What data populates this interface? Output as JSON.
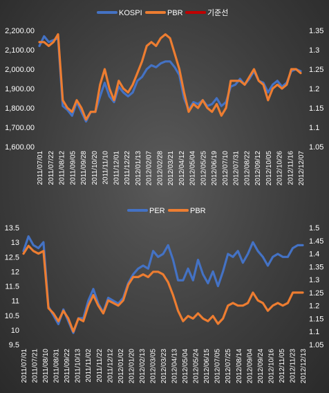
{
  "colors": {
    "kospi": "#4472c4",
    "per": "#4472c4",
    "pbr": "#ed7d31",
    "baseline": "#c00000",
    "text": "#ffffff"
  },
  "chart_data": [
    {
      "type": "line",
      "legend": [
        "KOSPI",
        "PBR",
        "기준선"
      ],
      "legend_position": "top",
      "grid": false,
      "left_axis": {
        "ticks": [
          "1,600.00",
          "1,700.00",
          "1,800.00",
          "1,900.00",
          "2,000.00",
          "2,100.00",
          "2,200.00"
        ],
        "min": 1600,
        "max": 2200
      },
      "right_axis": {
        "ticks": [
          "1.05",
          "1.1",
          "1.15",
          "1.2",
          "1.25",
          "1.3",
          "1.35"
        ],
        "min": 1.05,
        "max": 1.35
      },
      "x_ticks": [
        "2011/07/01",
        "2011/07/22",
        "2011/08/12",
        "2011/09/05",
        "2011/09/28",
        "2011/10/20",
        "2011/11/10",
        "2011/12/01",
        "2011/12/22",
        "2012/01/13",
        "2012/02/07",
        "2012/02/28",
        "2012/03/21",
        "2012/04/12",
        "2012/05/04",
        "2012/05/25",
        "2012/06/19",
        "2012/07/10",
        "2012/07/31",
        "2012/08/22",
        "2012/09/12",
        "2012/10/05",
        "2012/10/26",
        "2012/11/16",
        "2012/12/07"
      ],
      "series": [
        {
          "name": "KOSPI",
          "axis": "left",
          "values": [
            2120,
            2170,
            2140,
            2150,
            2160,
            1810,
            1790,
            1760,
            1830,
            1780,
            1730,
            1780,
            1780,
            1860,
            1930,
            1860,
            1830,
            1910,
            1880,
            1860,
            1880,
            1940,
            1960,
            2000,
            2020,
            2010,
            2030,
            2040,
            2040,
            2010,
            1970,
            1850,
            1790,
            1830,
            1820,
            1840,
            1810,
            1820,
            1850,
            1810,
            1830,
            1910,
            1920,
            1950,
            1920,
            1950,
            1990,
            1940,
            1930,
            1880,
            1920,
            1940,
            1910,
            1930,
            1990,
            2000,
            1990
          ]
        },
        {
          "name": "PBR",
          "axis": "right",
          "values": [
            1.32,
            1.32,
            1.31,
            1.32,
            1.34,
            1.17,
            1.15,
            1.14,
            1.17,
            1.15,
            1.12,
            1.14,
            1.14,
            1.21,
            1.25,
            1.2,
            1.17,
            1.22,
            1.2,
            1.19,
            1.21,
            1.24,
            1.27,
            1.31,
            1.32,
            1.31,
            1.33,
            1.34,
            1.33,
            1.29,
            1.25,
            1.19,
            1.14,
            1.16,
            1.15,
            1.17,
            1.15,
            1.14,
            1.16,
            1.13,
            1.15,
            1.22,
            1.22,
            1.22,
            1.21,
            1.23,
            1.25,
            1.22,
            1.21,
            1.17,
            1.2,
            1.21,
            1.2,
            1.21,
            1.25,
            1.25,
            1.24
          ]
        },
        {
          "name": "기준선",
          "axis": "right",
          "values": []
        }
      ]
    },
    {
      "type": "line",
      "legend": [
        "PER",
        "PBR"
      ],
      "legend_position": "top",
      "grid": false,
      "left_axis": {
        "ticks": [
          "9.5",
          "10",
          "10.5",
          "11",
          "11.5",
          "12",
          "12.5",
          "13",
          "13.5"
        ],
        "min": 9.5,
        "max": 13.5
      },
      "right_axis": {
        "ticks": [
          "1.05",
          "1.1",
          "1.15",
          "1.2",
          "1.25",
          "1.3",
          "1.35",
          "1.4",
          "1.45",
          "1.5"
        ],
        "min": 1.05,
        "max": 1.5
      },
      "x_ticks": [
        "2011/07/01",
        "2011/07/21",
        "2011/08/10",
        "2011/08/31",
        "2011/09/22",
        "2011/10/13",
        "2011/11/02",
        "2011/11/22",
        "2011/12/12",
        "2012/01/02",
        "2012/01/20",
        "2012/02/13",
        "2012/03/05",
        "2012/03/23",
        "2012/04/13",
        "2012/05/04",
        "2012/05/24",
        "2012/06/15",
        "2012/07/05",
        "2012/07/25",
        "2012/08/14",
        "2012/09/04",
        "2012/09/24",
        "2012/10/16",
        "2012/11/05",
        "2012/11/23",
        "2012/12/13"
      ],
      "series": [
        {
          "name": "PER",
          "axis": "left",
          "values": [
            12.7,
            13.2,
            12.9,
            12.8,
            13.0,
            10.8,
            10.5,
            10.2,
            10.7,
            10.3,
            9.9,
            10.4,
            10.4,
            11.0,
            11.4,
            10.9,
            10.6,
            11.1,
            11.0,
            10.9,
            11.1,
            11.6,
            11.9,
            12.1,
            12.2,
            12.1,
            12.7,
            12.5,
            12.6,
            12.9,
            12.4,
            11.7,
            11.7,
            12.1,
            11.7,
            12.4,
            11.9,
            11.6,
            12.0,
            11.5,
            12.0,
            12.6,
            12.5,
            12.7,
            12.3,
            12.6,
            13.0,
            12.7,
            12.5,
            12.2,
            12.5,
            12.6,
            12.5,
            12.5,
            12.8,
            12.9,
            12.9
          ]
        },
        {
          "name": "PBR",
          "axis": "right",
          "values": [
            1.4,
            1.43,
            1.41,
            1.4,
            1.41,
            1.19,
            1.17,
            1.14,
            1.18,
            1.15,
            1.1,
            1.15,
            1.14,
            1.2,
            1.24,
            1.2,
            1.17,
            1.22,
            1.21,
            1.2,
            1.22,
            1.28,
            1.31,
            1.31,
            1.32,
            1.31,
            1.33,
            1.33,
            1.32,
            1.29,
            1.24,
            1.18,
            1.14,
            1.16,
            1.15,
            1.17,
            1.15,
            1.14,
            1.16,
            1.13,
            1.15,
            1.2,
            1.21,
            1.2,
            1.2,
            1.21,
            1.25,
            1.22,
            1.21,
            1.18,
            1.2,
            1.21,
            1.2,
            1.21,
            1.25,
            1.25,
            1.25
          ]
        }
      ]
    }
  ]
}
